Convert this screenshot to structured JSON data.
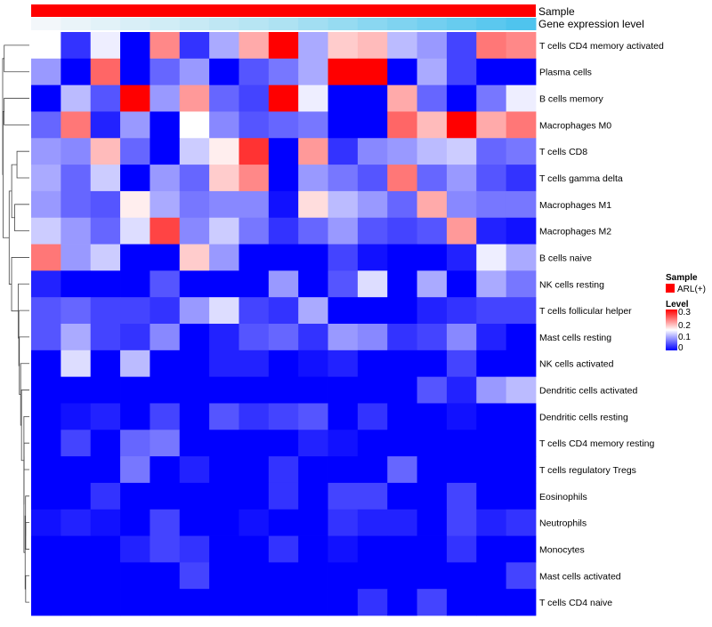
{
  "chart_data": {
    "type": "heatmap",
    "annotation_tracks": [
      "Sample",
      "Gene expression level"
    ],
    "sample_track_color": "#ff0000",
    "expression_track_gradient": [
      "#f3f7fa",
      "#aee2f2",
      "#4fc4ee"
    ],
    "rows": [
      "T cells CD4 memory activated",
      "Plasma cells",
      "B cells memory",
      "Macrophages M0",
      "T cells CD8",
      "T cells gamma delta",
      "Macrophages M1",
      "Macrophages M2",
      "B cells naive",
      "NK cells resting",
      "T cells follicular helper",
      "Mast cells resting",
      "NK cells activated",
      "Dendritic cells activated",
      "Dendritic cells resting",
      "T cells CD4 memory resting",
      "T cells regulatory  Tregs",
      "Eosinophils",
      "Neutrophils",
      "Monocytes",
      "Mast cells activated",
      "T cells CD4 naive"
    ],
    "values": [
      [
        0.15,
        0.03,
        0.14,
        0.0,
        0.22,
        0.03,
        0.1,
        0.2,
        0.3,
        0.1,
        0.18,
        0.19,
        0.11,
        0.09,
        0.04,
        0.23,
        0.22
      ],
      [
        0.09,
        0.0,
        0.24,
        0.0,
        0.06,
        0.09,
        0.0,
        0.05,
        0.07,
        0.1,
        0.3,
        0.3,
        0.0,
        0.1,
        0.04,
        0.0,
        0.0
      ],
      [
        0.0,
        0.11,
        0.05,
        0.3,
        0.09,
        0.21,
        0.06,
        0.04,
        0.3,
        0.14,
        0.0,
        0.0,
        0.2,
        0.06,
        0.0,
        0.07,
        0.14
      ],
      [
        0.06,
        0.23,
        0.02,
        0.09,
        0.0,
        0.15,
        0.08,
        0.05,
        0.06,
        0.07,
        0.0,
        0.0,
        0.24,
        0.19,
        0.3,
        0.2,
        0.23
      ],
      [
        0.09,
        0.08,
        0.19,
        0.06,
        0.0,
        0.12,
        0.16,
        0.27,
        0.0,
        0.21,
        0.03,
        0.08,
        0.09,
        0.11,
        0.12,
        0.06,
        0.07
      ],
      [
        0.1,
        0.06,
        0.12,
        0.0,
        0.09,
        0.06,
        0.18,
        0.22,
        0.0,
        0.09,
        0.07,
        0.05,
        0.23,
        0.06,
        0.09,
        0.05,
        0.03
      ],
      [
        0.09,
        0.06,
        0.05,
        0.16,
        0.1,
        0.07,
        0.08,
        0.08,
        0.01,
        0.17,
        0.11,
        0.09,
        0.06,
        0.2,
        0.08,
        0.07,
        0.07
      ],
      [
        0.12,
        0.09,
        0.06,
        0.13,
        0.26,
        0.08,
        0.12,
        0.07,
        0.03,
        0.06,
        0.09,
        0.05,
        0.04,
        0.05,
        0.21,
        0.02,
        0.01
      ],
      [
        0.23,
        0.09,
        0.12,
        0.0,
        0.0,
        0.18,
        0.09,
        0.0,
        0.0,
        0.0,
        0.04,
        0.01,
        0.0,
        0.0,
        0.02,
        0.14,
        0.1
      ],
      [
        0.02,
        0.0,
        0.0,
        0.0,
        0.05,
        0.0,
        0.0,
        0.0,
        0.09,
        0.0,
        0.05,
        0.13,
        0.0,
        0.1,
        0.0,
        0.1,
        0.07
      ],
      [
        0.05,
        0.06,
        0.04,
        0.04,
        0.03,
        0.09,
        0.13,
        0.04,
        0.03,
        0.1,
        0.0,
        0.0,
        0.0,
        0.02,
        0.03,
        0.04,
        0.04
      ],
      [
        0.05,
        0.1,
        0.04,
        0.03,
        0.08,
        0.0,
        0.02,
        0.05,
        0.06,
        0.03,
        0.09,
        0.08,
        0.03,
        0.04,
        0.08,
        0.02,
        0.0
      ],
      [
        0.0,
        0.13,
        0.0,
        0.11,
        0.0,
        0.0,
        0.02,
        0.02,
        0.0,
        0.01,
        0.02,
        0.0,
        0.0,
        0.0,
        0.04,
        0.0,
        0.0
      ],
      [
        0.0,
        0.0,
        0.0,
        0.0,
        0.0,
        0.0,
        0.0,
        0.0,
        0.0,
        0.0,
        0.0,
        0.0,
        0.0,
        0.05,
        0.02,
        0.09,
        0.11
      ],
      [
        0.0,
        0.01,
        0.02,
        0.0,
        0.04,
        0.0,
        0.05,
        0.03,
        0.04,
        0.05,
        0.0,
        0.03,
        0.0,
        0.0,
        0.01,
        0.0,
        0.0
      ],
      [
        0.0,
        0.04,
        0.0,
        0.06,
        0.07,
        0.0,
        0.0,
        0.0,
        0.0,
        0.02,
        0.01,
        0.0,
        0.0,
        0.0,
        0.0,
        0.0,
        0.0
      ],
      [
        0.0,
        0.0,
        0.0,
        0.07,
        0.0,
        0.02,
        0.0,
        0.0,
        0.03,
        0.0,
        0.0,
        0.0,
        0.06,
        0.0,
        0.0,
        0.0,
        0.0
      ],
      [
        0.0,
        0.0,
        0.03,
        0.0,
        0.0,
        0.0,
        0.0,
        0.0,
        0.03,
        0.0,
        0.04,
        0.04,
        0.0,
        0.0,
        0.04,
        0.0,
        0.0
      ],
      [
        0.01,
        0.02,
        0.01,
        0.0,
        0.04,
        0.0,
        0.0,
        0.01,
        0.0,
        0.0,
        0.03,
        0.02,
        0.02,
        0.0,
        0.04,
        0.02,
        0.03
      ],
      [
        0.0,
        0.0,
        0.0,
        0.02,
        0.04,
        0.03,
        0.0,
        0.0,
        0.03,
        0.0,
        0.01,
        0.0,
        0.0,
        0.0,
        0.03,
        0.0,
        0.0
      ],
      [
        0.0,
        0.0,
        0.0,
        0.0,
        0.0,
        0.04,
        0.0,
        0.0,
        0.0,
        0.0,
        0.0,
        0.0,
        0.0,
        0.0,
        0.0,
        0.0,
        0.04
      ],
      [
        0.0,
        0.0,
        0.0,
        0.0,
        0.0,
        0.0,
        0.0,
        0.0,
        0.0,
        0.0,
        0.0,
        0.03,
        0.0,
        0.04,
        0.0,
        0.0,
        0.0
      ]
    ],
    "color_scale": {
      "stops": [
        {
          "value": 0,
          "color": "#0000ff"
        },
        {
          "value": 0.15,
          "color": "#ffffff"
        },
        {
          "value": 0.3,
          "color": "#ff0000"
        }
      ],
      "range": [
        0,
        0.3
      ]
    },
    "legend": {
      "sample_title": "Sample",
      "sample_entry": "ARL(+)",
      "level_title": "Level",
      "level_ticks": [
        "0.3",
        "0.2",
        "0.1",
        "0"
      ],
      "placement": "right"
    },
    "dendrogram": "rows"
  }
}
